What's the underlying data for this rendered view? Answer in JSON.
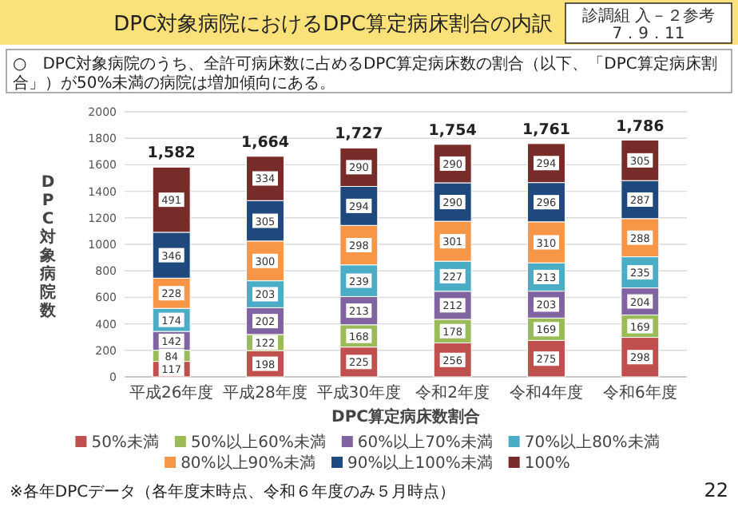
{
  "chart_data": {
    "type": "bar",
    "stacked": true,
    "title": "DPC対象病院におけるDPC算定病床割合の内訳",
    "subtitle": "○　DPC対象病院のうち、全許可病床数に占めるDPC算定病床数の割合（以下、「DPC算定病床割合」）が50%未満の病院は増加傾向にある。",
    "xlabel": "DPC算定病床数割合",
    "ylabel": "DPC対象病院数",
    "categories": [
      "平成26年度",
      "平成28年度",
      "平成30年度",
      "令和2年度",
      "令和4年度",
      "令和6年度"
    ],
    "series": [
      {
        "name": "50%未満",
        "color": "#c0504d",
        "values": [
          117,
          198,
          225,
          256,
          275,
          298
        ]
      },
      {
        "name": "50%以上60%未満",
        "color": "#9bbb59",
        "values": [
          84,
          122,
          168,
          178,
          169,
          169
        ]
      },
      {
        "name": "60%以上70%未満",
        "color": "#8064a2",
        "values": [
          142,
          202,
          213,
          212,
          203,
          204
        ]
      },
      {
        "name": "70%以上80%未満",
        "color": "#4bacc6",
        "values": [
          174,
          203,
          239,
          227,
          213,
          235
        ]
      },
      {
        "name": "80%以上90%未満",
        "color": "#f79646",
        "values": [
          228,
          300,
          298,
          301,
          310,
          288
        ]
      },
      {
        "name": "90%以上100%未満",
        "color": "#1f497d",
        "values": [
          346,
          305,
          294,
          290,
          296,
          287
        ]
      },
      {
        "name": "100%",
        "color": "#772c2a",
        "values": [
          491,
          334,
          290,
          290,
          294,
          305
        ]
      }
    ],
    "totals": [
      "1,582",
      "1,664",
      "1,727",
      "1,754",
      "1,761",
      "1,786"
    ],
    "data_labels": true,
    "ylim": [
      0,
      2000
    ],
    "yticks": [
      0,
      200,
      400,
      600,
      800,
      1000,
      1200,
      1400,
      1600,
      1800,
      2000
    ],
    "grid": "y",
    "legend": "bottom",
    "annotations": [
      "診調組 入－２参考",
      "7．9．11",
      "※各年DPCデータ（各年度末時点、令和６年度のみ５月時点）",
      "22"
    ]
  }
}
